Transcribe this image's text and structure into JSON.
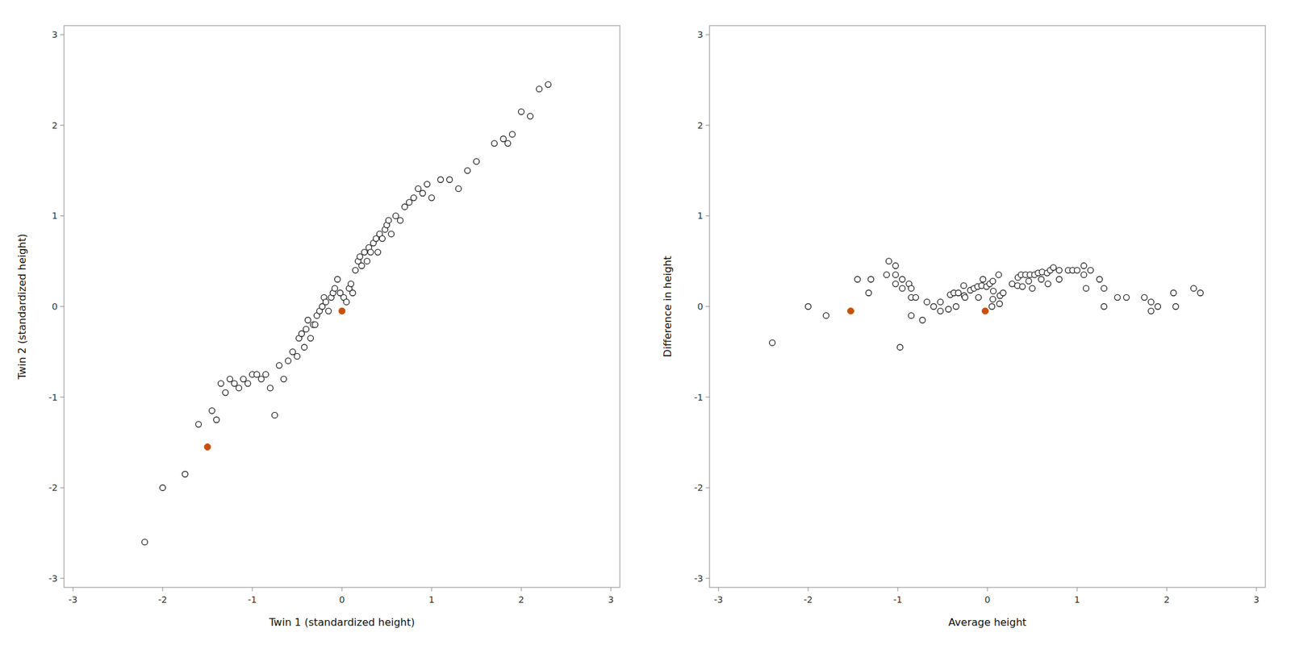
{
  "chart_data": [
    {
      "type": "scatter",
      "xlabel": "Twin 1 (standardized height)",
      "ylabel": "Twin 2 (standardized height)",
      "xlim": [
        -3.1,
        3.1
      ],
      "ylim": [
        -3.1,
        3.1
      ],
      "xticks": [
        -3,
        -2,
        -1,
        0,
        1,
        2,
        3
      ],
      "yticks": [
        -3,
        -2,
        -1,
        0,
        1,
        2,
        3
      ],
      "grid": false,
      "series": [
        {
          "color": "#222222",
          "marker": "open_circle",
          "x": [
            -2.2,
            -2.0,
            -1.75,
            -1.6,
            -1.45,
            -1.4,
            -1.35,
            -1.3,
            -1.25,
            -1.2,
            -1.15,
            -1.1,
            -1.05,
            -1.0,
            -0.95,
            -0.9,
            -0.85,
            -0.8,
            -0.75,
            -0.7,
            -0.65,
            -0.6,
            -0.55,
            -0.5,
            -0.48,
            -0.45,
            -0.42,
            -0.4,
            -0.38,
            -0.35,
            -0.32,
            -0.3,
            -0.28,
            -0.25,
            -0.22,
            -0.2,
            -0.18,
            -0.15,
            -0.12,
            -0.1,
            -0.08,
            -0.05,
            -0.02,
            0.02,
            0.05,
            0.08,
            0.1,
            0.12,
            0.15,
            0.18,
            0.2,
            0.22,
            0.25,
            0.28,
            0.3,
            0.32,
            0.35,
            0.38,
            0.4,
            0.42,
            0.45,
            0.48,
            0.5,
            0.52,
            0.55,
            0.6,
            0.65,
            0.7,
            0.75,
            0.8,
            0.85,
            0.9,
            0.95,
            1.0,
            1.1,
            1.2,
            1.3,
            1.4,
            1.5,
            1.7,
            1.8,
            1.85,
            1.9,
            2.0,
            2.1,
            2.2,
            2.3
          ],
          "values": [
            -2.6,
            -2.0,
            -1.85,
            -1.3,
            -1.15,
            -1.25,
            -0.85,
            -0.95,
            -0.8,
            -0.85,
            -0.9,
            -0.8,
            -0.85,
            -0.75,
            -0.75,
            -0.8,
            -0.75,
            -0.9,
            -1.2,
            -0.65,
            -0.8,
            -0.6,
            -0.5,
            -0.55,
            -0.35,
            -0.3,
            -0.45,
            -0.25,
            -0.15,
            -0.35,
            -0.2,
            -0.2,
            -0.1,
            -0.05,
            0.0,
            0.1,
            0.05,
            -0.05,
            0.1,
            0.15,
            0.2,
            0.3,
            0.15,
            0.1,
            0.05,
            0.2,
            0.25,
            0.15,
            0.4,
            0.5,
            0.55,
            0.45,
            0.6,
            0.5,
            0.65,
            0.6,
            0.7,
            0.75,
            0.6,
            0.8,
            0.75,
            0.85,
            0.9,
            0.95,
            0.8,
            1.0,
            0.95,
            1.1,
            1.15,
            1.2,
            1.3,
            1.25,
            1.35,
            1.2,
            1.4,
            1.4,
            1.3,
            1.5,
            1.6,
            1.8,
            1.85,
            1.8,
            1.9,
            2.15,
            2.1,
            2.4,
            2.45
          ]
        },
        {
          "color": "#C8500A",
          "marker": "circle",
          "x": [
            -1.5,
            0.0
          ],
          "values": [
            -1.55,
            -0.05
          ]
        }
      ]
    },
    {
      "type": "scatter",
      "xlabel": "Average height",
      "ylabel": "Difference in height",
      "xlim": [
        -3.1,
        3.1
      ],
      "ylim": [
        -3.1,
        3.1
      ],
      "xticks": [
        -3,
        -2,
        -1,
        0,
        1,
        2,
        3
      ],
      "yticks": [
        -3,
        -2,
        -1,
        0,
        1,
        2,
        3
      ],
      "grid": false,
      "series": [
        {
          "color": "#222222",
          "marker": "open_circle",
          "x": [
            -2.4,
            -2.0,
            -1.8,
            -1.45,
            -1.3,
            -1.325,
            -1.1,
            -1.125,
            -1.025,
            -1.025,
            -1.025,
            -0.95,
            -0.95,
            -0.875,
            -0.85,
            -0.85,
            -0.8,
            -0.85,
            -0.975,
            -0.675,
            -0.725,
            -0.6,
            -0.525,
            -0.525,
            -0.415,
            -0.375,
            -0.435,
            -0.325,
            -0.265,
            -0.35,
            -0.26,
            -0.25,
            -0.19,
            -0.15,
            -0.11,
            -0.05,
            -0.065,
            -0.1,
            -0.01,
            0.025,
            0.06,
            0.125,
            0.065,
            0.06,
            0.05,
            0.14,
            0.175,
            0.135,
            0.275,
            0.34,
            0.375,
            0.335,
            0.425,
            0.39,
            0.475,
            0.46,
            0.525,
            0.565,
            0.5,
            0.61,
            0.6,
            0.665,
            0.7,
            0.735,
            0.675,
            0.8,
            0.8,
            0.9,
            0.95,
            1.0,
            1.075,
            1.075,
            1.15,
            1.1,
            1.25,
            1.3,
            1.3,
            1.45,
            1.55,
            1.75,
            1.825,
            1.825,
            1.9,
            2.075,
            2.1,
            2.3,
            2.375
          ],
          "values": [
            -0.4,
            0,
            -0.1,
            0.3,
            0.3,
            0.15,
            0.5,
            0.35,
            0.45,
            0.35,
            0.25,
            0.3,
            0.2,
            0.25,
            0.2,
            0.1,
            0.1,
            -0.1,
            -0.45,
            0.05,
            -0.15,
            0,
            0.05,
            -0.05,
            0.13,
            0.15,
            -0.03,
            0.15,
            0.23,
            0,
            0.12,
            0.1,
            0.18,
            0.2,
            0.22,
            0.3,
            0.23,
            0.1,
            0.22,
            0.25,
            0.28,
            0.35,
            0.17,
            0.08,
            0,
            0.12,
            0.15,
            0.03,
            0.25,
            0.32,
            0.35,
            0.23,
            0.35,
            0.22,
            0.35,
            0.28,
            0.35,
            0.37,
            0.2,
            0.38,
            0.3,
            0.37,
            0.4,
            0.43,
            0.25,
            0.4,
            0.3,
            0.4,
            0.4,
            0.4,
            0.45,
            0.35,
            0.4,
            0.2,
            0.3,
            0.2,
            0,
            0.1,
            0.1,
            0.1,
            0.05,
            -0.05,
            0,
            0.15,
            0,
            0.2,
            0.15
          ]
        },
        {
          "color": "#C8500A",
          "marker": "circle",
          "x": [
            -1.525,
            -0.025
          ],
          "values": [
            -0.05,
            -0.05
          ]
        }
      ]
    }
  ]
}
